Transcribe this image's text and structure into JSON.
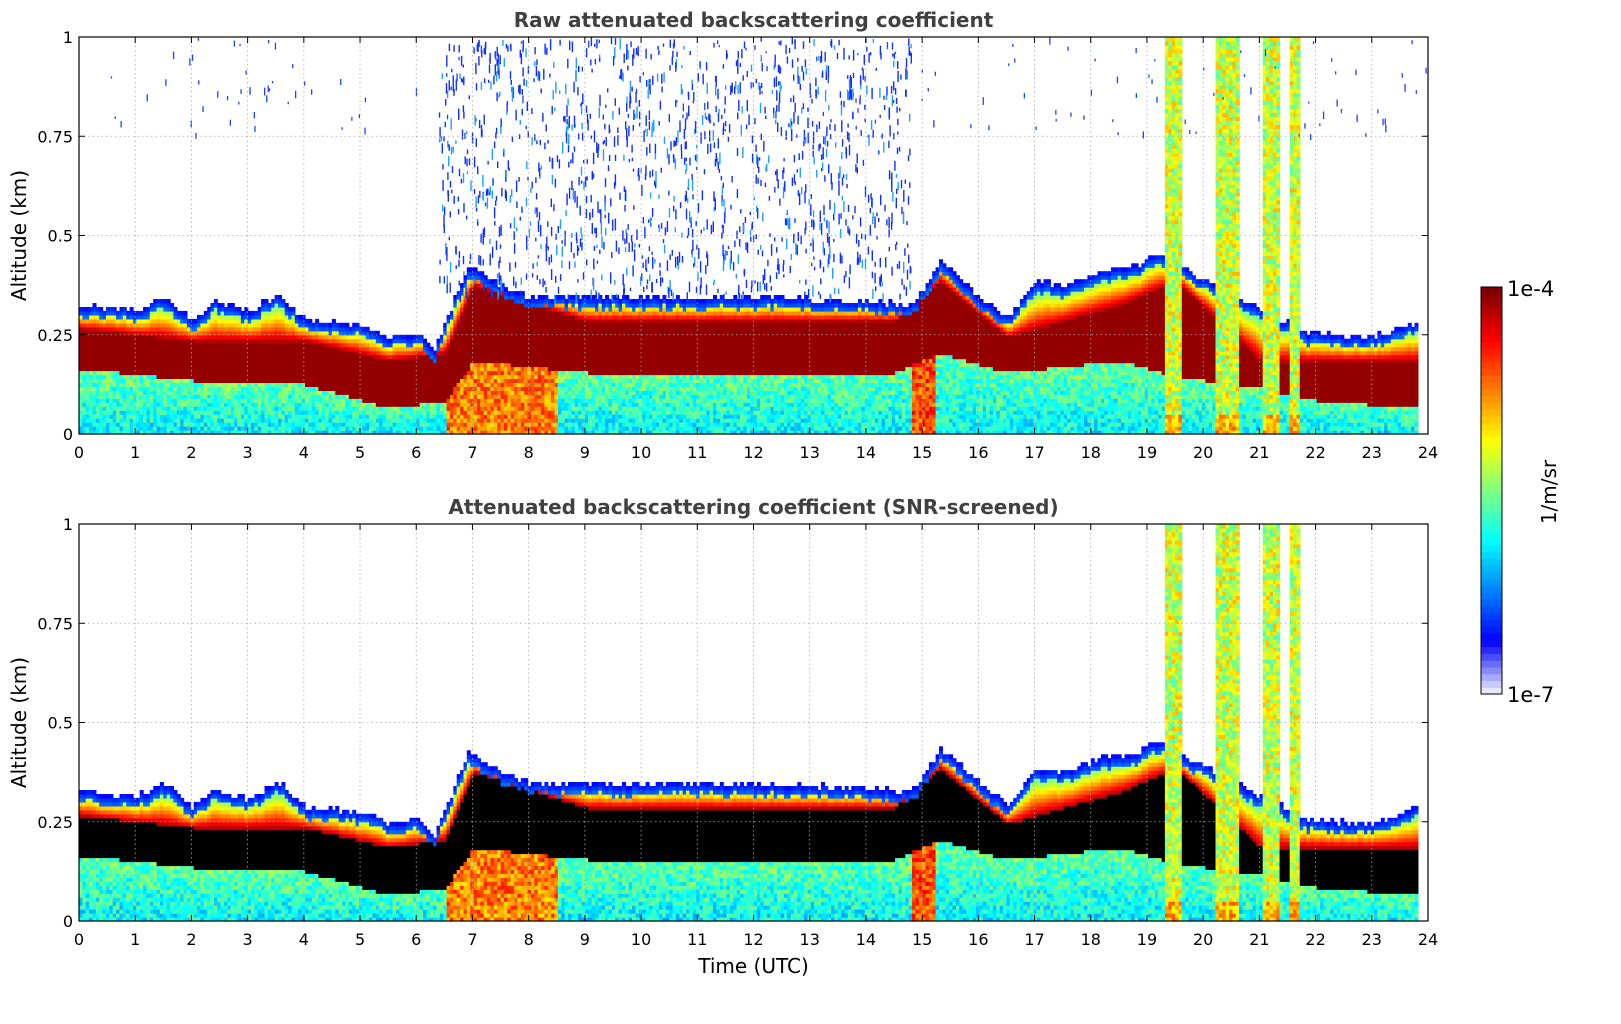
{
  "chart_data": {
    "type": "heatmap",
    "panels": [
      {
        "title": "Raw attenuated backscattering coefficient",
        "xlabel": "",
        "ylabel": "Altitude (km)",
        "xlim": [
          0,
          24
        ],
        "ylim": [
          0,
          1
        ],
        "xticks": [
          "0",
          "1",
          "2",
          "3",
          "4",
          "5",
          "6",
          "7",
          "8",
          "9",
          "10",
          "11",
          "12",
          "13",
          "14",
          "15",
          "16",
          "17",
          "18",
          "19",
          "20",
          "21",
          "22",
          "23",
          "24"
        ],
        "yticks": [
          "0",
          "0.25",
          "0.5",
          "0.75",
          "1"
        ],
        "grid": true,
        "layer_top_km": [
          {
            "t": 0,
            "z": 0.32
          },
          {
            "t": 1,
            "z": 0.31
          },
          {
            "t": 1.5,
            "z": 0.34
          },
          {
            "t": 2,
            "z": 0.28
          },
          {
            "t": 2.4,
            "z": 0.33
          },
          {
            "t": 3,
            "z": 0.3
          },
          {
            "t": 3.5,
            "z": 0.35
          },
          {
            "t": 4,
            "z": 0.28
          },
          {
            "t": 5,
            "z": 0.27
          },
          {
            "t": 5.5,
            "z": 0.24
          },
          {
            "t": 6,
            "z": 0.25
          },
          {
            "t": 6.3,
            "z": 0.21
          },
          {
            "t": 6.9,
            "z": 0.42
          },
          {
            "t": 7.5,
            "z": 0.37
          },
          {
            "t": 8,
            "z": 0.34
          },
          {
            "t": 10,
            "z": 0.34
          },
          {
            "t": 12,
            "z": 0.34
          },
          {
            "t": 14,
            "z": 0.33
          },
          {
            "t": 14.8,
            "z": 0.32
          },
          {
            "t": 15.3,
            "z": 0.43
          },
          {
            "t": 16,
            "z": 0.34
          },
          {
            "t": 16.5,
            "z": 0.29
          },
          {
            "t": 17,
            "z": 0.38
          },
          {
            "t": 17.5,
            "z": 0.37
          },
          {
            "t": 18,
            "z": 0.4
          },
          {
            "t": 18.8,
            "z": 0.42
          },
          {
            "t": 19.2,
            "z": 0.45
          },
          {
            "t": 19.8,
            "z": 0.4
          },
          {
            "t": 21.8,
            "z": 0.25
          },
          {
            "t": 23,
            "z": 0.24
          },
          {
            "t": 23.8,
            "z": 0.28
          }
        ],
        "layer_core_km": [
          {
            "t": 0,
            "top": 0.26,
            "bottom": 0.16
          },
          {
            "t": 2,
            "top": 0.23,
            "bottom": 0.13
          },
          {
            "t": 4,
            "top": 0.23,
            "bottom": 0.12
          },
          {
            "t": 5.5,
            "top": 0.18,
            "bottom": 0.06
          },
          {
            "t": 6.5,
            "top": 0.2,
            "bottom": 0.08
          },
          {
            "t": 7,
            "top": 0.37,
            "bottom": 0.18
          },
          {
            "t": 9,
            "top": 0.28,
            "bottom": 0.15
          },
          {
            "t": 12,
            "top": 0.28,
            "bottom": 0.15
          },
          {
            "t": 14.5,
            "top": 0.28,
            "bottom": 0.15
          },
          {
            "t": 15.3,
            "top": 0.38,
            "bottom": 0.2
          },
          {
            "t": 16.5,
            "top": 0.24,
            "bottom": 0.15
          },
          {
            "t": 18.5,
            "top": 0.32,
            "bottom": 0.18
          },
          {
            "t": 19.5,
            "top": 0.38,
            "bottom": 0.14
          },
          {
            "t": 21,
            "top": 0.18,
            "bottom": 0.11
          },
          {
            "t": 22,
            "top": 0.18,
            "bottom": 0.08
          },
          {
            "t": 23.8,
            "top": 0.18,
            "bottom": 0.06
          }
        ],
        "high_signal_columns_h": [
          [
            19.3,
            19.6
          ],
          [
            20.2,
            20.6
          ],
          [
            21.0,
            21.3
          ],
          [
            21.5,
            21.7
          ]
        ],
        "noise_region_h": [
          6.4,
          14.8
        ],
        "snr_screened": false
      },
      {
        "title": "Attenuated backscattering coefficient (SNR-screened)",
        "xlabel": "Time (UTC)",
        "ylabel": "Altitude (km)",
        "xlim": [
          0,
          24
        ],
        "ylim": [
          0,
          1
        ],
        "xticks": [
          "0",
          "1",
          "2",
          "3",
          "4",
          "5",
          "6",
          "7",
          "8",
          "9",
          "10",
          "11",
          "12",
          "13",
          "14",
          "15",
          "16",
          "17",
          "18",
          "19",
          "20",
          "21",
          "22",
          "23",
          "24"
        ],
        "yticks": [
          "0",
          "0.25",
          "0.5",
          "0.75",
          "1"
        ],
        "grid": true,
        "core_color": "#000000",
        "snr_screened": true
      }
    ],
    "colorbar": {
      "label": "1/m/sr",
      "max_label": "1e-4",
      "min_label": "1e-7",
      "scale": "log",
      "colormap": "jet",
      "colors": [
        "#e8e8ff",
        "#0000ff",
        "#0080ff",
        "#00ffff",
        "#80ff80",
        "#ffff00",
        "#ff8000",
        "#ff0000",
        "#800000"
      ]
    }
  }
}
